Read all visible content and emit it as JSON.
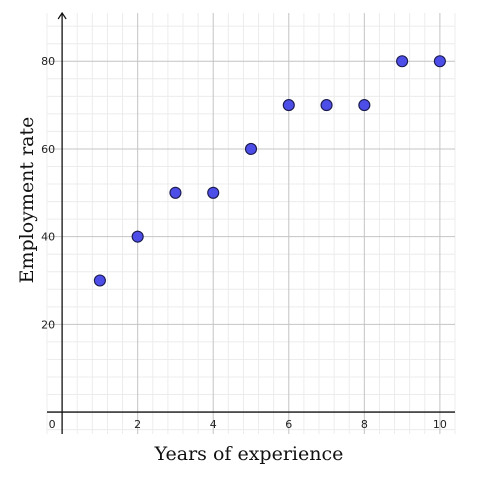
{
  "chart_data": {
    "type": "scatter",
    "title": "",
    "xlabel": "Years of experience",
    "ylabel": "Employment rate",
    "xlim": [
      -0.4,
      10.4
    ],
    "ylim": [
      -5,
      91
    ],
    "x_ticks": [
      2,
      4,
      6,
      8,
      10
    ],
    "y_ticks": [
      20,
      40,
      60,
      80
    ],
    "x_tick_labels": [
      "2",
      "4",
      "6",
      "8",
      "10"
    ],
    "y_tick_labels": [
      "20",
      "40",
      "60",
      "80"
    ],
    "origin_label": "0",
    "grid": true,
    "points": [
      {
        "x": 1,
        "y": 30
      },
      {
        "x": 2,
        "y": 40
      },
      {
        "x": 3,
        "y": 50
      },
      {
        "x": 4,
        "y": 50
      },
      {
        "x": 5,
        "y": 60
      },
      {
        "x": 6,
        "y": 70
      },
      {
        "x": 7,
        "y": 70
      },
      {
        "x": 8,
        "y": 70
      },
      {
        "x": 9,
        "y": 80
      },
      {
        "x": 10,
        "y": 80
      }
    ],
    "colors": {
      "marker_fill": "#4d4de8",
      "marker_stroke": "#1a1a4d",
      "major_grid": "#c4c4c4",
      "minor_grid": "#ececec",
      "axis": "#111111"
    }
  }
}
